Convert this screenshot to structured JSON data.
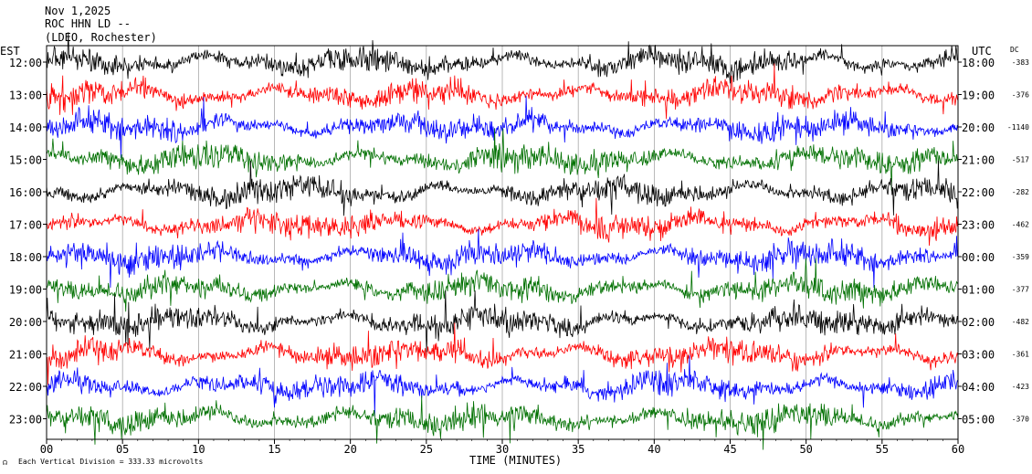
{
  "header": {
    "line1": "Nov 1,2025",
    "line2": "ROC HHN LD --",
    "line3": "(LDEO, Rochester)"
  },
  "chart_data": {
    "type": "line",
    "left_axis_title": "EST",
    "right_axis_title": "UTC",
    "dc_title": "DC",
    "x_axis_title": "TIME (MINUTES)",
    "xlim": [
      0,
      60
    ],
    "x_ticks": [
      "00",
      "05",
      "10",
      "15",
      "20",
      "25",
      "30",
      "35",
      "40",
      "45",
      "50",
      "55",
      "60"
    ],
    "footer_note": "Each Vertical Division =  333.33 microvolts",
    "trace_colors": [
      "#000000",
      "#ff0000",
      "#0000ff",
      "#007000"
    ],
    "rows": [
      {
        "est": "12:00",
        "utc": "18:00",
        "dc": "-383"
      },
      {
        "est": "13:00",
        "utc": "19:00",
        "dc": "-376"
      },
      {
        "est": "14:00",
        "utc": "20:00",
        "dc": "-1140"
      },
      {
        "est": "15:00",
        "utc": "21:00",
        "dc": "-517"
      },
      {
        "est": "16:00",
        "utc": "22:00",
        "dc": "-282"
      },
      {
        "est": "17:00",
        "utc": "23:00",
        "dc": "-462"
      },
      {
        "est": "18:00",
        "utc": "00:00",
        "dc": "-359"
      },
      {
        "est": "19:00",
        "utc": "01:00",
        "dc": "-377"
      },
      {
        "est": "20:00",
        "utc": "02:00",
        "dc": "-482"
      },
      {
        "est": "21:00",
        "utc": "03:00",
        "dc": "-361"
      },
      {
        "est": "22:00",
        "utc": "04:00",
        "dc": "-423"
      },
      {
        "est": "23:00",
        "utc": "05:00",
        "dc": "-370"
      }
    ]
  }
}
